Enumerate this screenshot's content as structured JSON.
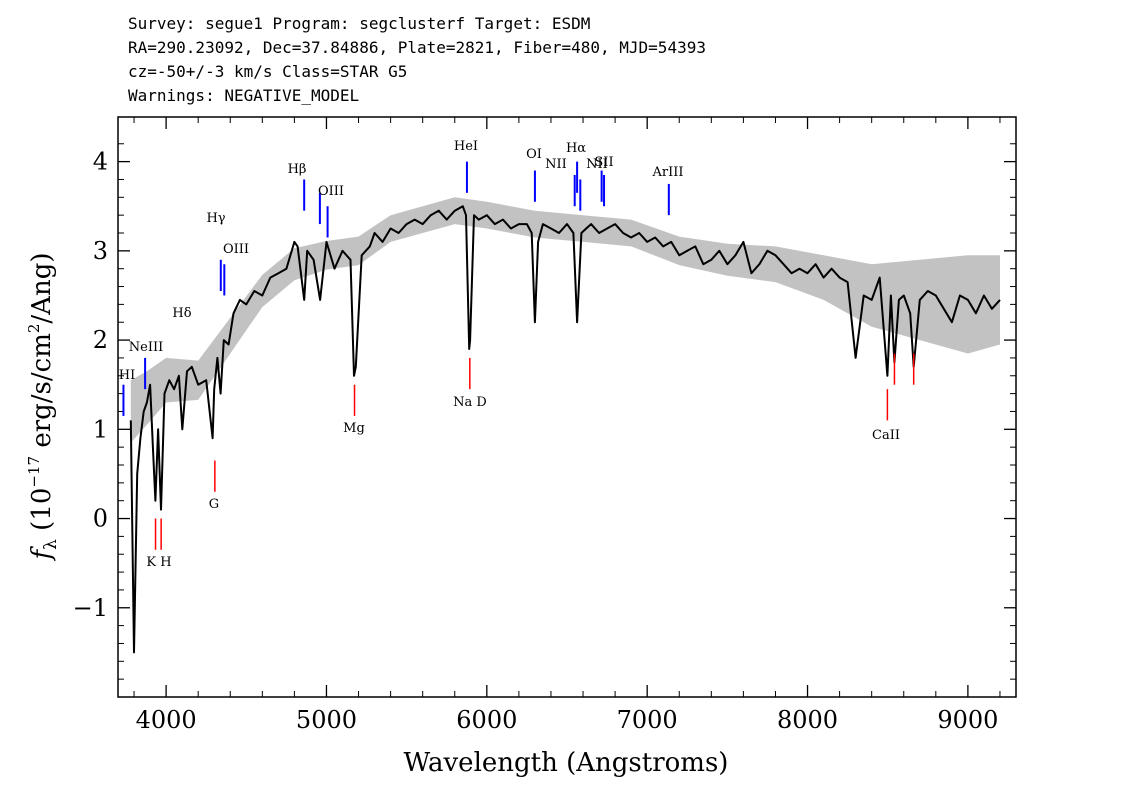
{
  "header": {
    "line1": "Survey: segue1 Program: segclusterf Target: ESDM",
    "line2": "RA=290.23092, Dec=37.84886, Plate=2821, Fiber=480, MJD=54393",
    "line3": "cz=-50+/-3 km/s Class=STAR G5",
    "line4": "Warnings: NEGATIVE_MODEL"
  },
  "chart_data": {
    "type": "line",
    "title": "Survey: segue1 Program: segclusterf Target: ESDM",
    "xlabel": "Wavelength (Angstroms)",
    "ylabel": "f_λ (10^-17 erg/s/cm^2/Ang)",
    "xlim": [
      3700,
      9300
    ],
    "ylim": [
      -2.0,
      4.5
    ],
    "xticks": [
      4000,
      5000,
      6000,
      7000,
      8000,
      9000
    ],
    "xtick_labels": [
      "4000",
      "5000",
      "6000",
      "7000",
      "8000",
      "9000"
    ],
    "yticks": [
      -1,
      0,
      1,
      2,
      3,
      4
    ],
    "ytick_labels": [
      "−1",
      "0",
      "1",
      "2",
      "3",
      "4"
    ],
    "grid": false,
    "series": [
      {
        "role": "flux",
        "color": "#000000",
        "x": [
          3780,
          3800,
          3820,
          3840,
          3860,
          3880,
          3900,
          3920,
          3933,
          3950,
          3968,
          3990,
          4020,
          4050,
          4080,
          4101,
          4130,
          4160,
          4200,
          4250,
          4290,
          4300,
          4320,
          4340,
          4360,
          4390,
          4420,
          4460,
          4500,
          4550,
          4600,
          4650,
          4700,
          4750,
          4800,
          4820,
          4861,
          4880,
          4920,
          4960,
          5000,
          5050,
          5100,
          5150,
          5172,
          5183,
          5220,
          5270,
          5300,
          5350,
          5400,
          5450,
          5500,
          5550,
          5600,
          5650,
          5700,
          5750,
          5800,
          5850,
          5870,
          5890,
          5896,
          5920,
          5950,
          6000,
          6050,
          6100,
          6150,
          6200,
          6250,
          6280,
          6300,
          6320,
          6350,
          6400,
          6450,
          6500,
          6540,
          6563,
          6590,
          6620,
          6650,
          6700,
          6750,
          6800,
          6850,
          6900,
          6950,
          7000,
          7050,
          7100,
          7150,
          7200,
          7250,
          7300,
          7350,
          7400,
          7450,
          7500,
          7550,
          7600,
          7650,
          7700,
          7750,
          7800,
          7850,
          7900,
          7950,
          8000,
          8050,
          8100,
          8150,
          8200,
          8250,
          8300,
          8350,
          8400,
          8450,
          8498,
          8520,
          8542,
          8570,
          8600,
          8640,
          8662,
          8700,
          8750,
          8800,
          8850,
          8900,
          8950,
          9000,
          9050,
          9100,
          9150,
          9200
        ],
        "y": [
          1.1,
          -1.5,
          0.5,
          0.9,
          1.2,
          1.3,
          1.5,
          0.7,
          0.2,
          1.0,
          0.1,
          1.4,
          1.55,
          1.45,
          1.6,
          1.0,
          1.65,
          1.7,
          1.5,
          1.55,
          0.9,
          1.45,
          1.8,
          1.4,
          2.0,
          1.95,
          2.3,
          2.45,
          2.4,
          2.55,
          2.5,
          2.7,
          2.75,
          2.8,
          3.1,
          3.05,
          2.45,
          3.0,
          2.9,
          2.45,
          3.1,
          2.8,
          3.0,
          2.9,
          1.6,
          1.7,
          2.95,
          3.05,
          3.2,
          3.1,
          3.25,
          3.2,
          3.3,
          3.35,
          3.3,
          3.4,
          3.45,
          3.35,
          3.45,
          3.5,
          3.4,
          1.9,
          2.0,
          3.4,
          3.35,
          3.4,
          3.3,
          3.35,
          3.25,
          3.3,
          3.3,
          3.2,
          2.2,
          3.1,
          3.3,
          3.25,
          3.2,
          3.3,
          3.2,
          2.2,
          3.2,
          3.25,
          3.3,
          3.2,
          3.25,
          3.3,
          3.2,
          3.15,
          3.2,
          3.1,
          3.15,
          3.05,
          3.1,
          2.95,
          3.0,
          3.05,
          2.85,
          2.9,
          3.0,
          2.85,
          2.95,
          3.1,
          2.75,
          2.85,
          3.0,
          2.95,
          2.85,
          2.75,
          2.8,
          2.75,
          2.85,
          2.7,
          2.8,
          2.7,
          2.65,
          1.8,
          2.5,
          2.45,
          2.7,
          1.6,
          2.5,
          1.75,
          2.45,
          2.5,
          2.3,
          1.7,
          2.45,
          2.55,
          2.5,
          2.35,
          2.2,
          2.5,
          2.45,
          2.3,
          2.5,
          2.35,
          2.45
        ]
      },
      {
        "role": "noise-envelope",
        "color": "#bbbbbb",
        "x": [
          3780,
          3880,
          4000,
          4200,
          4400,
          4600,
          4800,
          5000,
          5200,
          5400,
          5600,
          5800,
          6000,
          6300,
          6600,
          6900,
          7200,
          7500,
          7800,
          8100,
          8400,
          8700,
          9000,
          9200
        ],
        "y": [
          1.2,
          1.35,
          1.55,
          1.55,
          2.05,
          2.55,
          2.85,
          2.95,
          3.0,
          3.25,
          3.35,
          3.45,
          3.4,
          3.3,
          3.25,
          3.2,
          3.0,
          2.9,
          2.85,
          2.7,
          2.5,
          2.45,
          2.4,
          2.45
        ],
        "spread": [
          0.35,
          0.3,
          0.25,
          0.22,
          0.2,
          0.18,
          0.18,
          0.16,
          0.16,
          0.15,
          0.15,
          0.15,
          0.15,
          0.15,
          0.15,
          0.15,
          0.16,
          0.18,
          0.2,
          0.25,
          0.35,
          0.45,
          0.55,
          0.5
        ]
      }
    ],
    "emission_lines": [
      {
        "label": "HI",
        "x": 3734,
        "y0": 1.15,
        "y1": 1.5
      },
      {
        "label": "NeIII",
        "x": 3869,
        "y0": 1.45,
        "y1": 1.8
      },
      {
        "label": "Hδ",
        "x": 4102,
        "y0": 1.75,
        "y1": 1.75
      },
      {
        "label": "Hγ",
        "x": 4341,
        "y0": 2.55,
        "y1": 2.9
      },
      {
        "label": "OIII",
        "x": 4363,
        "y0": 2.5,
        "y1": 2.85
      },
      {
        "label": "Hβ",
        "x": 4861,
        "y0": 3.45,
        "y1": 3.8
      },
      {
        "label": "OIII",
        "x": 4959,
        "y0": 3.3,
        "y1": 3.65
      },
      {
        "label": "OIII",
        "x": 5007,
        "y0": 3.15,
        "y1": 3.5
      },
      {
        "label": "HeI",
        "x": 5876,
        "y0": 3.65,
        "y1": 4.0
      },
      {
        "label": "OI",
        "x": 6300,
        "y0": 3.55,
        "y1": 3.9
      },
      {
        "label": "NII",
        "x": 6548,
        "y0": 3.5,
        "y1": 3.85
      },
      {
        "label": "Hα",
        "x": 6563,
        "y0": 3.65,
        "y1": 4.0
      },
      {
        "label": "NII",
        "x": 6583,
        "y0": 3.45,
        "y1": 3.8
      },
      {
        "label": "SII",
        "x": 6716,
        "y0": 3.55,
        "y1": 3.9
      },
      {
        "label": "SII",
        "x": 6731,
        "y0": 3.5,
        "y1": 3.85
      },
      {
        "label": "ArIII",
        "x": 7135,
        "y0": 3.4,
        "y1": 3.75
      }
    ],
    "absorption_lines": [
      {
        "label": "K",
        "x": 3934,
        "y0": -0.35,
        "y1": 0.0
      },
      {
        "label": "H",
        "x": 3969,
        "y0": -0.35,
        "y1": 0.0
      },
      {
        "label": "G",
        "x": 4304,
        "y0": 0.3,
        "y1": 0.65
      },
      {
        "label": "Mg",
        "x": 5175,
        "y0": 1.15,
        "y1": 1.5
      },
      {
        "label": "Na D",
        "x": 5894,
        "y0": 1.45,
        "y1": 1.8
      },
      {
        "label": "CaII",
        "x": 8498,
        "y0": 1.1,
        "y1": 1.45
      },
      {
        "label": "CaII",
        "x": 8542,
        "y0": 1.5,
        "y1": 1.85
      },
      {
        "label": "CaII",
        "x": 8662,
        "y0": 1.5,
        "y1": 1.85
      }
    ],
    "label_texts": {
      "HI": "HI",
      "NeIII": "NeIII",
      "Hδ": "Hδ",
      "Hγ": "Hγ",
      "OIII": "OIII",
      "Hβ": "Hβ",
      "HeI": "HeI",
      "OI": "OI",
      "NII": "NII",
      "Hα": "Hα",
      "SII": "SII",
      "ArIII": "ArIII",
      "KH": "K H",
      "G": "G",
      "Mg": "Mg",
      "NaD": "Na D",
      "CaII": "CaII"
    },
    "colors": {
      "emission": "#0000ff",
      "absorption": "#ff0000",
      "flux": "#000000",
      "noise": "#bbbbbb"
    }
  }
}
